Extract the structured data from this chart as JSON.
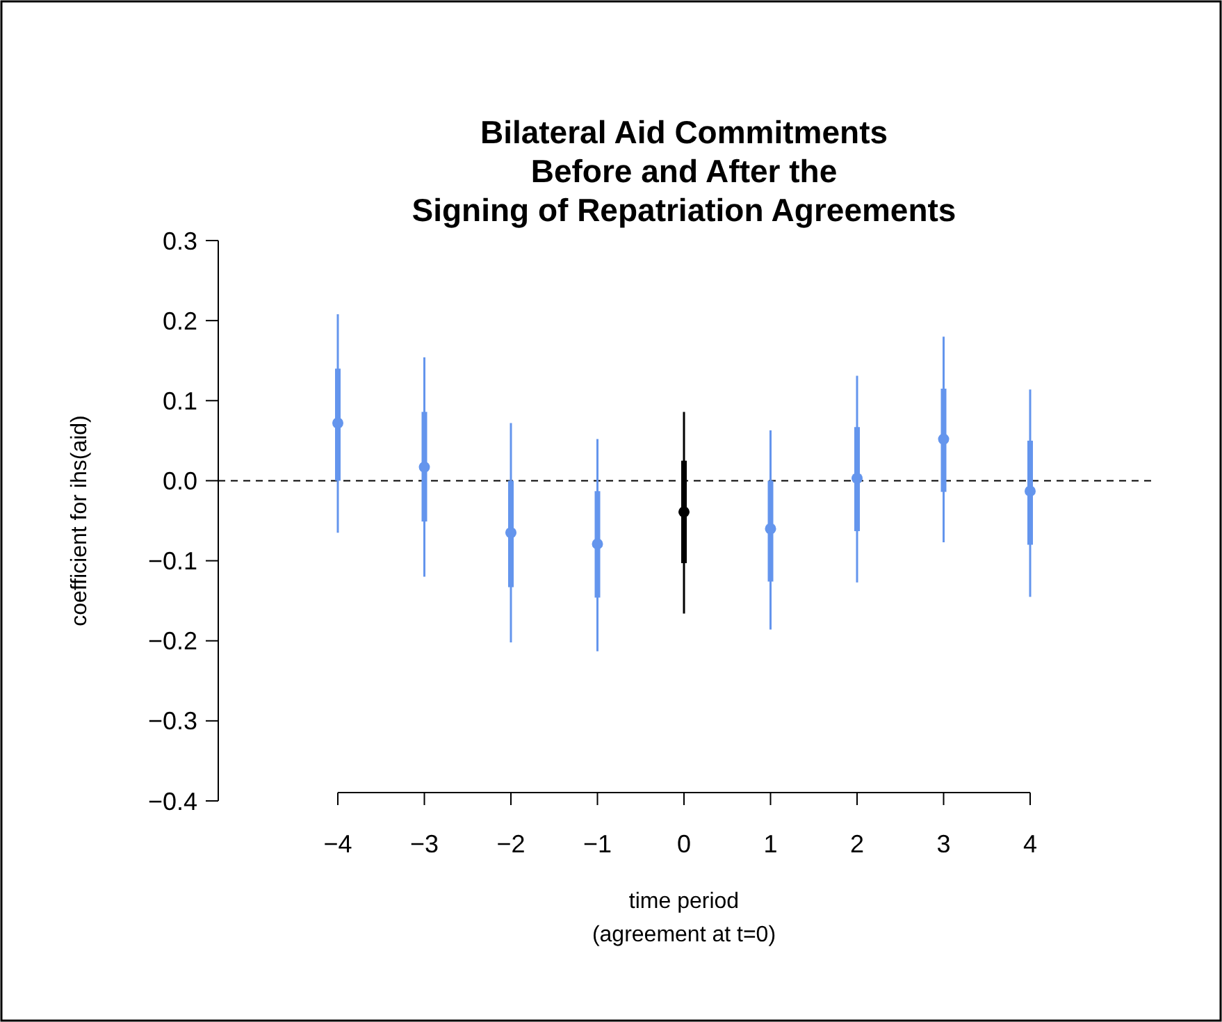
{
  "chart_data": {
    "type": "scatter",
    "title": "Bilateral Aid Commitments\nBefore and After the\nSigning of Repatriation Agreements",
    "xlabel": "time period\n(agreement at t=0)",
    "ylabel": "coefficient for ihs(aid)",
    "categories": [
      "−4",
      "−3",
      "−2",
      "−1",
      "0",
      "1",
      "2",
      "3",
      "4"
    ],
    "ylim": [
      -0.4,
      0.3
    ],
    "yticks": [
      {
        "value": -0.4,
        "label": "−0.4"
      },
      {
        "value": -0.3,
        "label": "−0.3"
      },
      {
        "value": -0.2,
        "label": "−0.2"
      },
      {
        "value": -0.1,
        "label": "−0.1"
      },
      {
        "value": 0,
        "label": "0.0"
      },
      {
        "value": 0.1,
        "label": "0.1"
      },
      {
        "value": 0.2,
        "label": "0.2"
      },
      {
        "value": 0.3,
        "label": "0.3"
      }
    ],
    "grid": false,
    "marker": "circle",
    "ref_lines": [
      {
        "axis": "y",
        "value": 0,
        "color": "#000000",
        "line_style": "dashed"
      }
    ],
    "series": [
      {
        "type": "bar",
        "colors": [
          "#6495ed",
          "#6495ed",
          "#6495ed",
          "#6495ed",
          "#000000",
          "#6495ed",
          "#6495ed",
          "#6495ed",
          "#6495ed"
        ],
        "base": [
          0.0,
          -0.051,
          -0.133,
          -0.146,
          -0.103,
          -0.126,
          -0.063,
          -0.014,
          -0.08
        ],
        "values": [
          0.14,
          0.137,
          0.133,
          0.133,
          0.128,
          0.126,
          0.13,
          0.129,
          0.13
        ]
      },
      {
        "colors": [
          "#6495ed",
          "#6495ed",
          "#6495ed",
          "#6495ed",
          "#000000",
          "#6495ed",
          "#6495ed",
          "#6495ed",
          "#6495ed"
        ],
        "values": [
          0.072,
          0.017,
          -0.065,
          -0.079,
          -0.039,
          -0.06,
          0.003,
          0.052,
          -0.013
        ],
        "errors": [
          [
            -0.065,
            0.208
          ],
          [
            -0.12,
            0.154
          ],
          [
            -0.202,
            0.072
          ],
          [
            -0.213,
            0.052
          ],
          [
            -0.166,
            0.086
          ],
          [
            -0.186,
            0.063
          ],
          [
            -0.127,
            0.131
          ],
          [
            -0.077,
            0.18
          ],
          [
            -0.145,
            0.114
          ]
        ]
      }
    ]
  }
}
